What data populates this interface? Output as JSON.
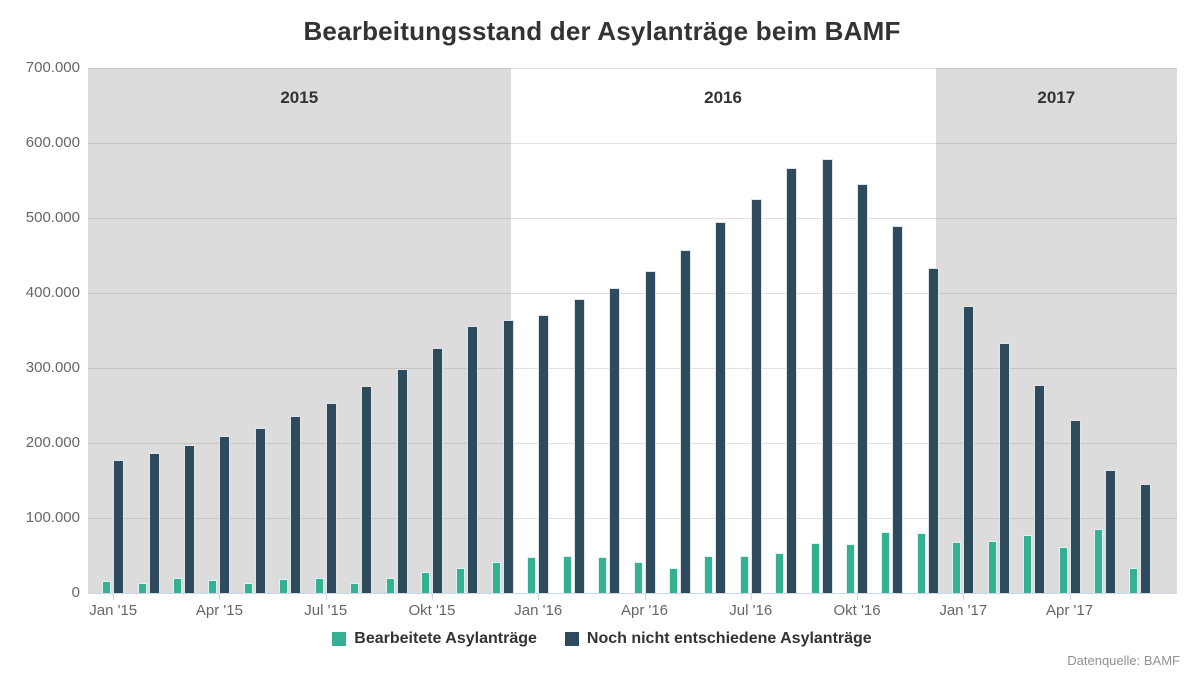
{
  "page": {
    "title": "Bearbeitungsstand der Asylanträge beim BAMF",
    "source_note": "Datenquelle: BAMF"
  },
  "colors": {
    "processed_teal": "#34b093",
    "pending_navy": "#2e4b5d",
    "band_gray": "#dcdcdc",
    "axis_line": "#ccd6eb",
    "axis_text": "#666666",
    "title_text": "#333333",
    "source_text": "#919191"
  },
  "chart_data": {
    "type": "bar",
    "title": "Bearbeitungsstand der Asylanträge beim BAMF",
    "source_note": "Datenquelle: BAMF",
    "grid": true,
    "legend_position": "bottom",
    "ylim": [
      0,
      700000
    ],
    "y_tick_labels": [
      "0",
      "100.000",
      "200.000",
      "300.000",
      "400.000",
      "500.000",
      "600.000",
      "700.000"
    ],
    "categories": [
      "Jan '15",
      "Feb '15",
      "Mär '15",
      "Apr '15",
      "Mai '15",
      "Jun '15",
      "Jul '15",
      "Aug '15",
      "Sep '15",
      "Okt '15",
      "Nov '15",
      "Dez '15",
      "Jan '16",
      "Feb '16",
      "Mär '16",
      "Apr '16",
      "Mai '16",
      "Jun '16",
      "Jul '16",
      "Aug '16",
      "Sep '16",
      "Okt '16",
      "Nov '16",
      "Dez '16",
      "Jan '17",
      "Feb '17",
      "Mär '17",
      "Apr '17",
      "Mai '17",
      "Jun '17"
    ],
    "x_tick_labels": [
      {
        "label": "Jan '15",
        "month": 0
      },
      {
        "label": "Apr '15",
        "month": 3
      },
      {
        "label": "Jul '15",
        "month": 6
      },
      {
        "label": "Okt '15",
        "month": 9
      },
      {
        "label": "Jan '16",
        "month": 12
      },
      {
        "label": "Apr '16",
        "month": 15
      },
      {
        "label": "Jul '16",
        "month": 18
      },
      {
        "label": "Okt '16",
        "month": 21
      },
      {
        "label": "Jan '17",
        "month": 24
      },
      {
        "label": "Apr '17",
        "month": 27
      }
    ],
    "year_bands": [
      {
        "label": "2015",
        "shaded": true,
        "from_month": 0,
        "to_month": 12
      },
      {
        "label": "2016",
        "shaded": false,
        "from_month": 12,
        "to_month": 24
      },
      {
        "label": "2017",
        "shaded": true,
        "from_month": 24,
        "to_month": 30
      }
    ],
    "series": [
      {
        "name": "Bearbeitete Asylanträge",
        "color": "#34b093",
        "values": [
          16000,
          14000,
          20000,
          17000,
          14000,
          19000,
          20000,
          14000,
          20000,
          28000,
          33000,
          41000,
          48000,
          50000,
          48000,
          42000,
          33000,
          49000,
          49000,
          54000,
          67000,
          66000,
          82000,
          80000,
          68000,
          70000,
          77000,
          62000,
          86000,
          33000
        ]
      },
      {
        "name": "Noch nicht entschiedene Asylanträge",
        "color": "#2e4b5d",
        "values": [
          177000,
          187000,
          198000,
          209000,
          220000,
          236000,
          254000,
          276000,
          299000,
          327000,
          356000,
          364000,
          371000,
          392000,
          407000,
          430000,
          458000,
          495000,
          525000,
          567000,
          579000,
          546000,
          490000,
          433000,
          383000,
          333000,
          277000,
          231000,
          164000,
          145000
        ]
      }
    ]
  }
}
